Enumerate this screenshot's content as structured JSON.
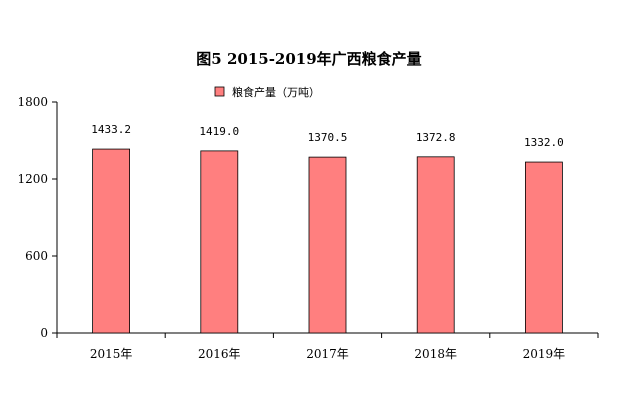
{
  "chart_data": {
    "type": "bar",
    "title": "图5  2015-2019年广西粮食产量",
    "legend_position": "top-center",
    "categories": [
      "2015年",
      "2016年",
      "2017年",
      "2018年",
      "2019年"
    ],
    "series": [
      {
        "name": "粮食产量（万吨）",
        "values": [
          1433.2,
          1419.0,
          1370.5,
          1372.8,
          1332.0
        ],
        "value_labels": [
          "1433.2",
          "1419.0",
          "1370.5",
          "1372.8",
          "1332.0"
        ],
        "color": "#ff7f7f",
        "border_color": "#000000"
      }
    ],
    "ylim": [
      0,
      1800
    ],
    "yticks": [
      0,
      600,
      1200,
      1800
    ],
    "ytick_labels": [
      "0",
      "600",
      "1200",
      "1800"
    ],
    "xlabel": "",
    "ylabel": "",
    "grid": false
  }
}
